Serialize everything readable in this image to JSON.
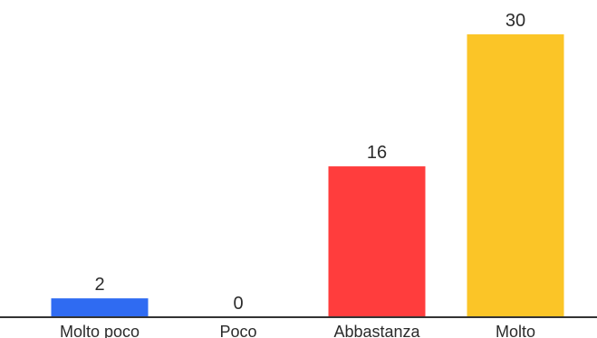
{
  "chart_data": {
    "type": "bar",
    "categories": [
      "Molto poco",
      "Poco",
      "Abbastanza",
      "Molto"
    ],
    "values": [
      2,
      0,
      16,
      30
    ],
    "colors": [
      "#2f6bf2",
      "#ff3b3b",
      "#ff3d3d",
      "#fbc527"
    ],
    "ylim": [
      0,
      30
    ],
    "grid": false,
    "legend": "none",
    "title": "",
    "xlabel": "",
    "ylabel": ""
  }
}
